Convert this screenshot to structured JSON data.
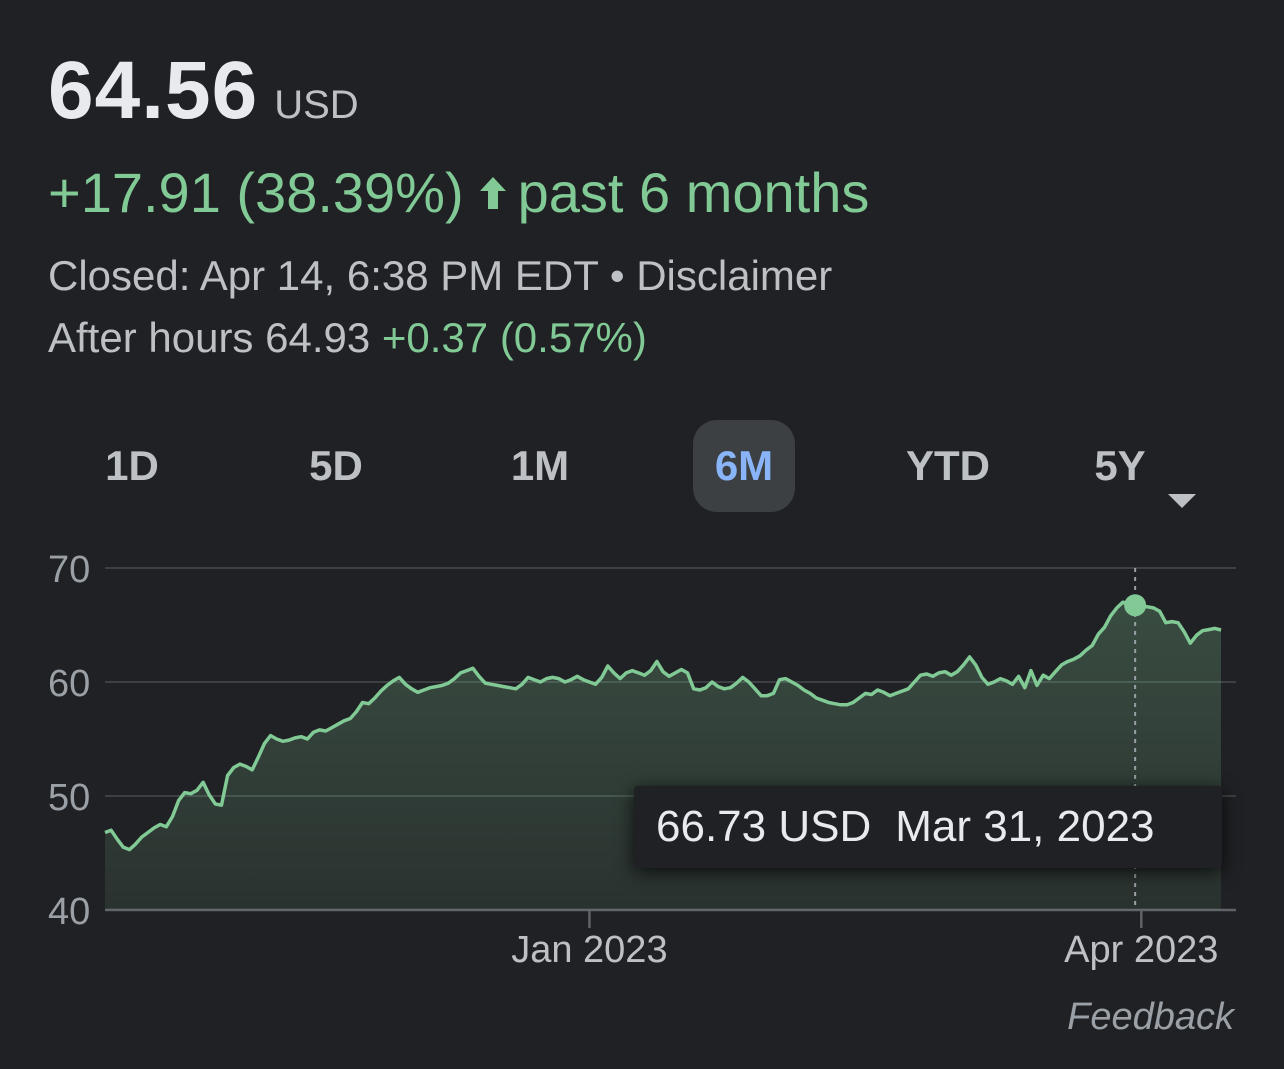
{
  "quote": {
    "price": "64.56",
    "currency": "USD",
    "change": "+17.91 (38.39%)",
    "period": "past 6 months",
    "closed_text": "Closed: Apr 14, 6:38 PM EDT",
    "separator": " • ",
    "disclaimer": "Disclaimer",
    "after_hours_label": "After hours 64.93",
    "after_hours_change": "+0.37 (0.57%)"
  },
  "tabs": [
    {
      "label": "1D",
      "active": false
    },
    {
      "label": "5D",
      "active": false
    },
    {
      "label": "1M",
      "active": false
    },
    {
      "label": "6M",
      "active": true
    },
    {
      "label": "YTD",
      "active": false
    },
    {
      "label": "5Y",
      "active": false
    }
  ],
  "colors": {
    "positive": "#81c995",
    "active_tab": "#8ab4f8",
    "background": "#202124"
  },
  "tooltip": {
    "value": "66.73 USD",
    "date": "Mar 31, 2023"
  },
  "feedback": "Feedback",
  "chart_data": {
    "type": "area",
    "title": "",
    "xlabel": "",
    "ylabel": "",
    "ylim": [
      40,
      70
    ],
    "yticks": [
      70,
      60,
      50,
      40
    ],
    "x_ticks": [
      {
        "label": "Jan 2023",
        "date": "2023-01-01"
      },
      {
        "label": "Apr 2023",
        "date": "2023-04-01"
      }
    ],
    "x_range": [
      "2022-10-14",
      "2023-04-14"
    ],
    "grid": true,
    "highlight": {
      "date": "2023-03-31",
      "value": 66.73
    },
    "series": [
      {
        "points": [
          [
            "2022-10-14",
            46.8
          ],
          [
            "2022-10-15",
            47.0
          ],
          [
            "2022-10-16",
            46.2
          ],
          [
            "2022-10-17",
            45.5
          ],
          [
            "2022-10-18",
            45.3
          ],
          [
            "2022-10-19",
            45.8
          ],
          [
            "2022-10-20",
            46.4
          ],
          [
            "2022-10-21",
            46.8
          ],
          [
            "2022-10-22",
            47.2
          ],
          [
            "2022-10-23",
            47.5
          ],
          [
            "2022-10-24",
            47.3
          ],
          [
            "2022-10-25",
            48.2
          ],
          [
            "2022-10-26",
            49.6
          ],
          [
            "2022-10-27",
            50.3
          ],
          [
            "2022-10-28",
            50.2
          ],
          [
            "2022-10-29",
            50.5
          ],
          [
            "2022-10-30",
            51.2
          ],
          [
            "2022-10-31",
            50.1
          ],
          [
            "2022-11-01",
            49.3
          ],
          [
            "2022-11-02",
            49.2
          ],
          [
            "2022-11-03",
            51.8
          ],
          [
            "2022-11-04",
            52.5
          ],
          [
            "2022-11-05",
            52.8
          ],
          [
            "2022-11-06",
            52.6
          ],
          [
            "2022-11-07",
            52.3
          ],
          [
            "2022-11-08",
            53.4
          ],
          [
            "2022-11-09",
            54.6
          ],
          [
            "2022-11-10",
            55.3
          ],
          [
            "2022-11-11",
            55.0
          ],
          [
            "2022-11-12",
            54.8
          ],
          [
            "2022-11-13",
            54.9
          ],
          [
            "2022-11-14",
            55.1
          ],
          [
            "2022-11-15",
            55.2
          ],
          [
            "2022-11-16",
            55.0
          ],
          [
            "2022-11-17",
            55.6
          ],
          [
            "2022-11-18",
            55.8
          ],
          [
            "2022-11-19",
            55.7
          ],
          [
            "2022-11-20",
            56.0
          ],
          [
            "2022-11-21",
            56.3
          ],
          [
            "2022-11-22",
            56.6
          ],
          [
            "2022-11-23",
            56.8
          ],
          [
            "2022-11-24",
            57.4
          ],
          [
            "2022-11-25",
            58.2
          ],
          [
            "2022-11-26",
            58.1
          ],
          [
            "2022-11-27",
            58.6
          ],
          [
            "2022-11-28",
            59.2
          ],
          [
            "2022-11-29",
            59.7
          ],
          [
            "2022-11-30",
            60.1
          ],
          [
            "2022-12-01",
            60.4
          ],
          [
            "2022-12-02",
            59.8
          ],
          [
            "2022-12-03",
            59.4
          ],
          [
            "2022-12-04",
            59.1
          ],
          [
            "2022-12-05",
            59.3
          ],
          [
            "2022-12-06",
            59.5
          ],
          [
            "2022-12-07",
            59.6
          ],
          [
            "2022-12-08",
            59.7
          ],
          [
            "2022-12-09",
            59.9
          ],
          [
            "2022-12-10",
            60.3
          ],
          [
            "2022-12-11",
            60.8
          ],
          [
            "2022-12-12",
            61.0
          ],
          [
            "2022-12-13",
            61.2
          ],
          [
            "2022-12-14",
            60.5
          ],
          [
            "2022-12-15",
            59.9
          ],
          [
            "2022-12-16",
            59.8
          ],
          [
            "2022-12-17",
            59.7
          ],
          [
            "2022-12-18",
            59.6
          ],
          [
            "2022-12-19",
            59.5
          ],
          [
            "2022-12-20",
            59.4
          ],
          [
            "2022-12-21",
            59.8
          ],
          [
            "2022-12-22",
            60.4
          ],
          [
            "2022-12-23",
            60.2
          ],
          [
            "2022-12-24",
            60.0
          ],
          [
            "2022-12-25",
            60.3
          ],
          [
            "2022-12-26",
            60.4
          ],
          [
            "2022-12-27",
            60.3
          ],
          [
            "2022-12-28",
            60.0
          ],
          [
            "2022-12-29",
            60.2
          ],
          [
            "2022-12-30",
            60.5
          ],
          [
            "2022-12-31",
            60.2
          ],
          [
            "2023-01-01",
            60.0
          ],
          [
            "2023-01-02",
            59.8
          ],
          [
            "2023-01-03",
            60.4
          ],
          [
            "2023-01-04",
            61.4
          ],
          [
            "2023-01-05",
            60.8
          ],
          [
            "2023-01-06",
            60.3
          ],
          [
            "2023-01-07",
            60.8
          ],
          [
            "2023-01-08",
            61.0
          ],
          [
            "2023-01-09",
            60.8
          ],
          [
            "2023-01-10",
            60.6
          ],
          [
            "2023-01-11",
            61.0
          ],
          [
            "2023-01-12",
            61.8
          ],
          [
            "2023-01-13",
            60.9
          ],
          [
            "2023-01-14",
            60.5
          ],
          [
            "2023-01-15",
            60.8
          ],
          [
            "2023-01-16",
            61.1
          ],
          [
            "2023-01-17",
            60.8
          ],
          [
            "2023-01-18",
            59.4
          ],
          [
            "2023-01-19",
            59.3
          ],
          [
            "2023-01-20",
            59.5
          ],
          [
            "2023-01-21",
            60.0
          ],
          [
            "2023-01-22",
            59.6
          ],
          [
            "2023-01-23",
            59.4
          ],
          [
            "2023-01-24",
            59.5
          ],
          [
            "2023-01-25",
            59.9
          ],
          [
            "2023-01-26",
            60.4
          ],
          [
            "2023-01-27",
            60.0
          ],
          [
            "2023-01-28",
            59.4
          ],
          [
            "2023-01-29",
            58.8
          ],
          [
            "2023-01-30",
            58.8
          ],
          [
            "2023-01-31",
            59.0
          ],
          [
            "2023-02-01",
            60.2
          ],
          [
            "2023-02-02",
            60.3
          ],
          [
            "2023-02-03",
            60.0
          ],
          [
            "2023-02-04",
            59.7
          ],
          [
            "2023-02-05",
            59.3
          ],
          [
            "2023-02-06",
            59.0
          ],
          [
            "2023-02-07",
            58.6
          ],
          [
            "2023-02-08",
            58.4
          ],
          [
            "2023-02-09",
            58.2
          ],
          [
            "2023-02-10",
            58.1
          ],
          [
            "2023-02-11",
            58.0
          ],
          [
            "2023-02-12",
            58.0
          ],
          [
            "2023-02-13",
            58.2
          ],
          [
            "2023-02-14",
            58.6
          ],
          [
            "2023-02-15",
            59.0
          ],
          [
            "2023-02-16",
            58.9
          ],
          [
            "2023-02-17",
            59.3
          ],
          [
            "2023-02-18",
            59.1
          ],
          [
            "2023-02-19",
            58.8
          ],
          [
            "2023-02-20",
            59.0
          ],
          [
            "2023-02-21",
            59.2
          ],
          [
            "2023-02-22",
            59.4
          ],
          [
            "2023-02-23",
            60.0
          ],
          [
            "2023-02-24",
            60.6
          ],
          [
            "2023-02-25",
            60.7
          ],
          [
            "2023-02-26",
            60.5
          ],
          [
            "2023-02-27",
            60.8
          ],
          [
            "2023-02-28",
            60.9
          ],
          [
            "2023-03-01",
            60.6
          ],
          [
            "2023-03-02",
            60.9
          ],
          [
            "2023-03-03",
            61.5
          ],
          [
            "2023-03-04",
            62.2
          ],
          [
            "2023-03-05",
            61.5
          ],
          [
            "2023-03-06",
            60.4
          ],
          [
            "2023-03-07",
            59.8
          ],
          [
            "2023-03-08",
            60.0
          ],
          [
            "2023-03-09",
            60.3
          ],
          [
            "2023-03-10",
            60.1
          ],
          [
            "2023-03-11",
            59.8
          ],
          [
            "2023-03-12",
            60.5
          ],
          [
            "2023-03-13",
            59.5
          ],
          [
            "2023-03-14",
            61.0
          ],
          [
            "2023-03-15",
            59.7
          ],
          [
            "2023-03-16",
            60.6
          ],
          [
            "2023-03-17",
            60.3
          ],
          [
            "2023-03-18",
            60.9
          ],
          [
            "2023-03-19",
            61.5
          ],
          [
            "2023-03-20",
            61.8
          ],
          [
            "2023-03-21",
            62.0
          ],
          [
            "2023-03-22",
            62.3
          ],
          [
            "2023-03-23",
            62.8
          ],
          [
            "2023-03-24",
            63.2
          ],
          [
            "2023-03-25",
            64.2
          ],
          [
            "2023-03-26",
            64.8
          ],
          [
            "2023-03-27",
            65.8
          ],
          [
            "2023-03-28",
            66.5
          ],
          [
            "2023-03-29",
            67.0
          ],
          [
            "2023-03-30",
            66.9
          ],
          [
            "2023-03-31",
            66.73
          ],
          [
            "2023-04-01",
            66.6
          ],
          [
            "2023-04-02",
            66.6
          ],
          [
            "2023-04-03",
            66.5
          ],
          [
            "2023-04-04",
            66.2
          ],
          [
            "2023-04-05",
            65.2
          ],
          [
            "2023-04-06",
            65.3
          ],
          [
            "2023-04-07",
            65.2
          ],
          [
            "2023-04-08",
            64.4
          ],
          [
            "2023-04-09",
            63.4
          ],
          [
            "2023-04-10",
            64.1
          ],
          [
            "2023-04-11",
            64.5
          ],
          [
            "2023-04-12",
            64.6
          ],
          [
            "2023-04-13",
            64.7
          ],
          [
            "2023-04-14",
            64.56
          ]
        ]
      }
    ]
  }
}
